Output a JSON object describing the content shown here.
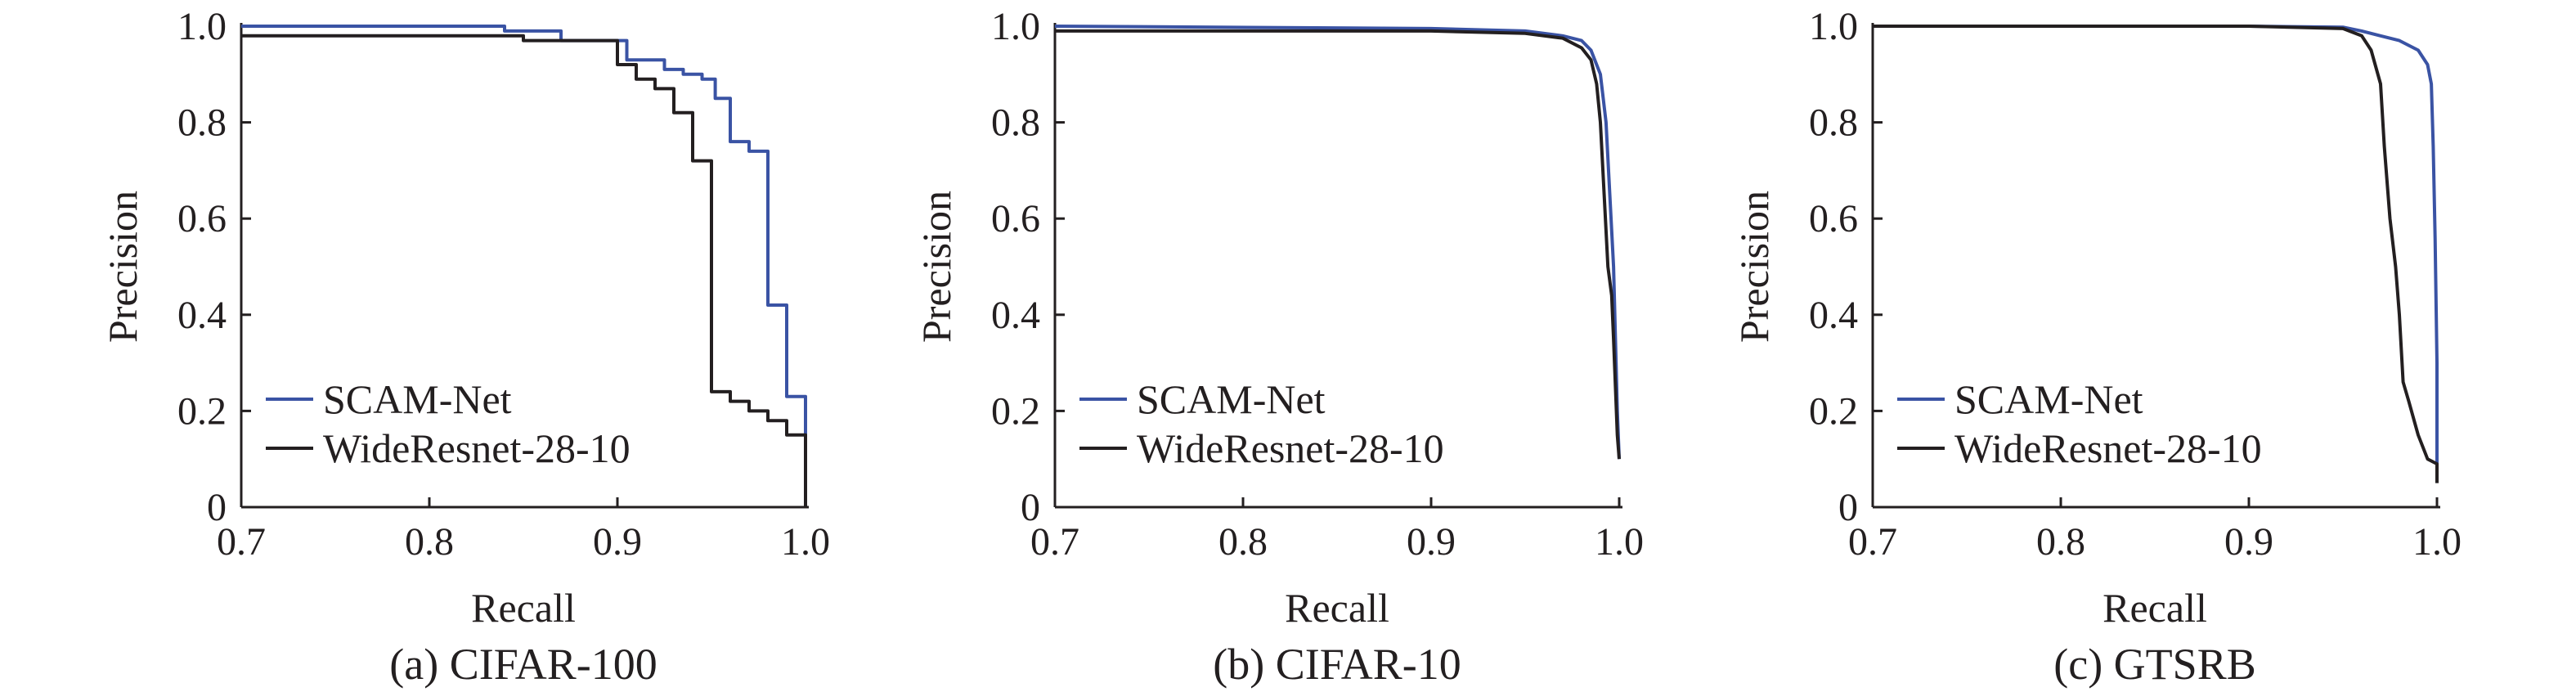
{
  "chart_data": [
    {
      "type": "line",
      "caption": "(a) CIFAR-100",
      "xlabel": "Recall",
      "ylabel": "Precision",
      "xlim": [
        0.7,
        1.0
      ],
      "ylim": [
        0,
        1.0
      ],
      "xticks": [
        0.7,
        0.8,
        0.9,
        1.0
      ],
      "xtick_labels": [
        "0.7",
        "0.8",
        "0.9",
        "1.0"
      ],
      "yticks": [
        0,
        0.2,
        0.4,
        0.6,
        0.8,
        1.0
      ],
      "ytick_labels": [
        "0",
        "0.2",
        "0.4",
        "0.6",
        "0.8",
        "1.0"
      ],
      "legend_position": "lower-left",
      "series": [
        {
          "name": "SCAM-Net",
          "color": "#3a53a4",
          "x": [
            0.7,
            0.84,
            0.84,
            0.87,
            0.87,
            0.905,
            0.905,
            0.925,
            0.925,
            0.935,
            0.935,
            0.945,
            0.945,
            0.952,
            0.952,
            0.96,
            0.96,
            0.97,
            0.97,
            0.98,
            0.98,
            0.99,
            0.99,
            1.0,
            1.0
          ],
          "y": [
            1.0,
            1.0,
            0.99,
            0.99,
            0.97,
            0.97,
            0.93,
            0.93,
            0.91,
            0.91,
            0.9,
            0.9,
            0.89,
            0.89,
            0.85,
            0.85,
            0.76,
            0.76,
            0.74,
            0.74,
            0.42,
            0.42,
            0.23,
            0.23,
            0.15
          ]
        },
        {
          "name": "WideResnet-28-10",
          "color": "#231f20",
          "x": [
            0.7,
            0.85,
            0.85,
            0.9,
            0.9,
            0.91,
            0.91,
            0.92,
            0.92,
            0.93,
            0.93,
            0.94,
            0.94,
            0.95,
            0.95,
            0.96,
            0.96,
            0.97,
            0.97,
            0.98,
            0.98,
            0.99,
            0.99,
            1.0,
            1.0
          ],
          "y": [
            0.98,
            0.98,
            0.97,
            0.97,
            0.92,
            0.92,
            0.89,
            0.89,
            0.87,
            0.87,
            0.82,
            0.82,
            0.72,
            0.72,
            0.24,
            0.24,
            0.22,
            0.22,
            0.2,
            0.2,
            0.18,
            0.18,
            0.15,
            0.15,
            0.0
          ]
        }
      ]
    },
    {
      "type": "line",
      "caption": "(b) CIFAR-10",
      "xlabel": "Recall",
      "ylabel": "Precision",
      "xlim": [
        0.7,
        1.0
      ],
      "ylim": [
        0,
        1.0
      ],
      "xticks": [
        0.7,
        0.8,
        0.9,
        1.0
      ],
      "xtick_labels": [
        "0.7",
        "0.8",
        "0.9",
        "1.0"
      ],
      "yticks": [
        0,
        0.2,
        0.4,
        0.6,
        0.8,
        1.0
      ],
      "ytick_labels": [
        "0",
        "0.2",
        "0.4",
        "0.6",
        "0.8",
        "1.0"
      ],
      "legend_position": "lower-left",
      "series": [
        {
          "name": "SCAM-Net",
          "color": "#3a53a4",
          "x": [
            0.7,
            0.9,
            0.95,
            0.97,
            0.98,
            0.985,
            0.99,
            0.993,
            0.995,
            0.997,
            0.998,
            0.999,
            1.0
          ],
          "y": [
            1.0,
            0.995,
            0.99,
            0.98,
            0.97,
            0.95,
            0.9,
            0.8,
            0.65,
            0.5,
            0.35,
            0.2,
            0.1
          ]
        },
        {
          "name": "WideResnet-28-10",
          "color": "#231f20",
          "x": [
            0.7,
            0.9,
            0.95,
            0.97,
            0.98,
            0.985,
            0.988,
            0.99,
            0.992,
            0.994,
            0.996,
            0.997,
            0.998,
            0.999,
            1.0
          ],
          "y": [
            0.99,
            0.99,
            0.985,
            0.975,
            0.955,
            0.93,
            0.88,
            0.8,
            0.65,
            0.5,
            0.44,
            0.35,
            0.25,
            0.15,
            0.1
          ]
        }
      ]
    },
    {
      "type": "line",
      "caption": "(c) GTSRB",
      "xlabel": "Recall",
      "ylabel": "Precision",
      "xlim": [
        0.7,
        1.0
      ],
      "ylim": [
        0,
        1.0
      ],
      "xticks": [
        0.7,
        0.8,
        0.9,
        1.0
      ],
      "xtick_labels": [
        "0.7",
        "0.8",
        "0.9",
        "1.0"
      ],
      "yticks": [
        0,
        0.2,
        0.4,
        0.6,
        0.8,
        1.0
      ],
      "ytick_labels": [
        "0",
        "0.2",
        "0.4",
        "0.6",
        "0.8",
        "1.0"
      ],
      "legend_position": "lower-left",
      "series": [
        {
          "name": "SCAM-Net",
          "color": "#3a53a4",
          "x": [
            0.7,
            0.9,
            0.95,
            0.96,
            0.97,
            0.98,
            0.99,
            0.995,
            0.997,
            0.998,
            0.999,
            1.0,
            1.0
          ],
          "y": [
            1.0,
            1.0,
            0.998,
            0.99,
            0.98,
            0.97,
            0.95,
            0.92,
            0.88,
            0.75,
            0.56,
            0.3,
            0.08
          ]
        },
        {
          "name": "WideResnet-28-10",
          "color": "#231f20",
          "x": [
            0.7,
            0.9,
            0.95,
            0.96,
            0.965,
            0.97,
            0.972,
            0.975,
            0.978,
            0.98,
            0.982,
            0.985,
            0.99,
            0.995,
            1.0,
            1.0
          ],
          "y": [
            1.0,
            1.0,
            0.995,
            0.98,
            0.95,
            0.88,
            0.75,
            0.6,
            0.5,
            0.4,
            0.26,
            0.22,
            0.15,
            0.1,
            0.09,
            0.05
          ]
        }
      ]
    }
  ]
}
